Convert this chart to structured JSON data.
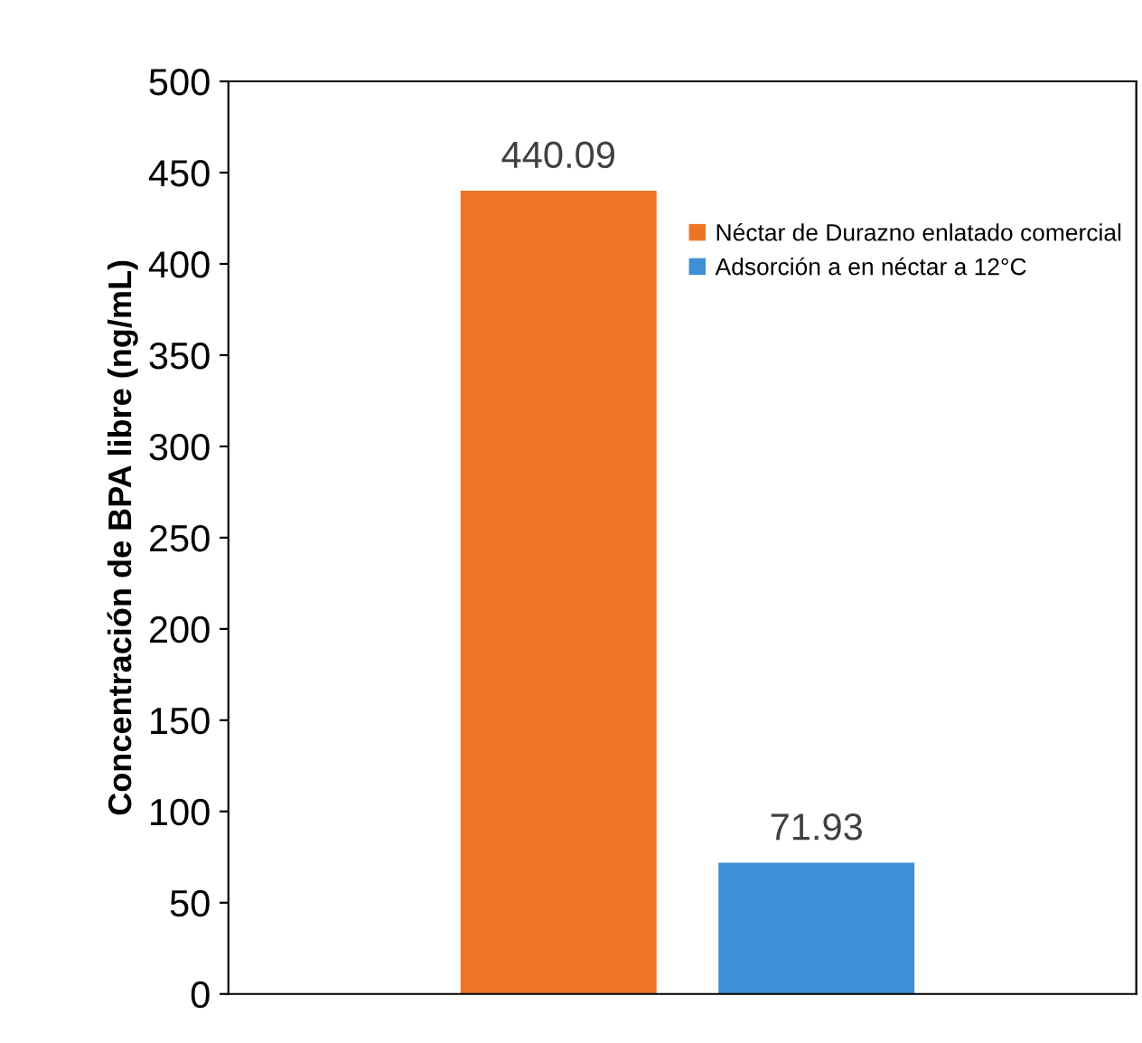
{
  "chart_data": {
    "type": "bar",
    "ylabel": "Concentración de BPA libre (ng/mL)",
    "categories": [
      null,
      null
    ],
    "series": [
      {
        "name": "Néctar de Durazno enlatado comercial",
        "color": "#ee7524",
        "values": [
          440.09,
          null
        ]
      },
      {
        "name": "Adsorción a en néctar a 12°C",
        "color": "#3f8fd6",
        "values": [
          null,
          71.93
        ]
      }
    ],
    "ylim": [
      0,
      500
    ],
    "yticks": [
      0,
      50,
      100,
      150,
      200,
      250,
      300,
      350,
      400,
      450,
      500
    ],
    "data_labels": true,
    "grid": false,
    "legend": "top right"
  }
}
